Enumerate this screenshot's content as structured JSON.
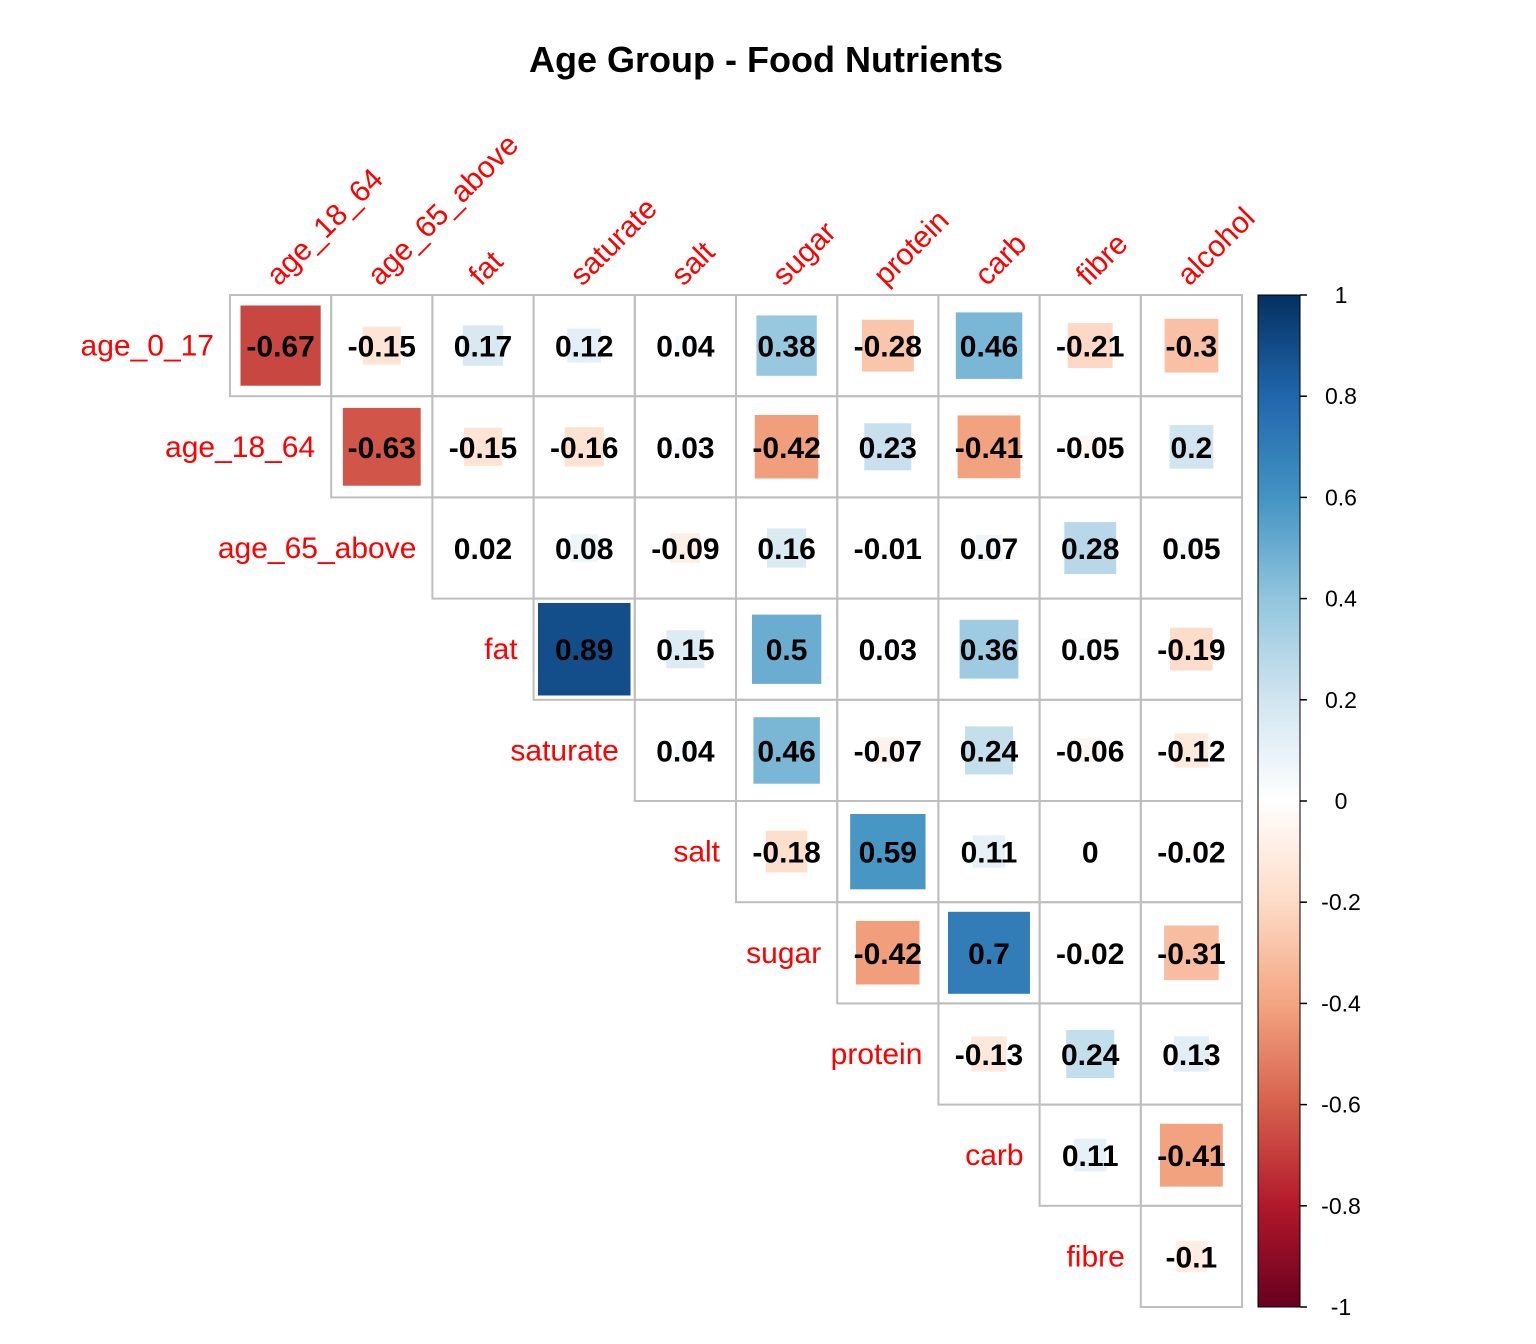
{
  "chart_data": {
    "type": "heatmap",
    "title": "Age Group - Food Nutrients",
    "layout": "upper-triangle",
    "row_labels": [
      "age_0_17",
      "age_18_64",
      "age_65_above",
      "fat",
      "saturate",
      "salt",
      "sugar",
      "protein",
      "carb",
      "fibre"
    ],
    "column_labels": [
      "age_18_64",
      "age_65_above",
      "fat",
      "saturate",
      "salt",
      "sugar",
      "protein",
      "carb",
      "fibre",
      "alcohol"
    ],
    "values": [
      [
        -0.67,
        -0.15,
        0.17,
        0.12,
        0.04,
        0.38,
        -0.28,
        0.46,
        -0.21,
        -0.3
      ],
      [
        null,
        -0.63,
        -0.15,
        -0.16,
        0.03,
        -0.42,
        0.23,
        -0.41,
        -0.05,
        0.2
      ],
      [
        null,
        null,
        0.02,
        0.08,
        -0.09,
        0.16,
        -0.01,
        0.07,
        0.28,
        0.05
      ],
      [
        null,
        null,
        null,
        0.89,
        0.15,
        0.5,
        0.03,
        0.36,
        0.05,
        -0.19
      ],
      [
        null,
        null,
        null,
        null,
        0.04,
        0.46,
        -0.07,
        0.24,
        -0.06,
        -0.12
      ],
      [
        null,
        null,
        null,
        null,
        null,
        -0.18,
        0.59,
        0.11,
        0,
        -0.02
      ],
      [
        null,
        null,
        null,
        null,
        null,
        null,
        -0.42,
        0.7,
        -0.02,
        -0.31
      ],
      [
        null,
        null,
        null,
        null,
        null,
        null,
        null,
        -0.13,
        0.24,
        0.13
      ],
      [
        null,
        null,
        null,
        null,
        null,
        null,
        null,
        null,
        0.11,
        -0.41
      ],
      [
        null,
        null,
        null,
        null,
        null,
        null,
        null,
        null,
        null,
        -0.1
      ]
    ],
    "color_scale": {
      "range": [
        -1,
        1
      ],
      "ticks": [
        1,
        0.8,
        0.6,
        0.4,
        0.2,
        0,
        -0.2,
        -0.4,
        -0.6,
        -0.8,
        -1
      ],
      "stops": [
        "#67001F",
        "#B2182B",
        "#D6604D",
        "#F4A582",
        "#FDDBC7",
        "#FFFFFF",
        "#D1E5F0",
        "#92C5DE",
        "#4393C3",
        "#2166AC",
        "#053061"
      ]
    },
    "label_color": "#FF0000",
    "grid_color": "#BEBEBE",
    "legend_position": "right"
  }
}
